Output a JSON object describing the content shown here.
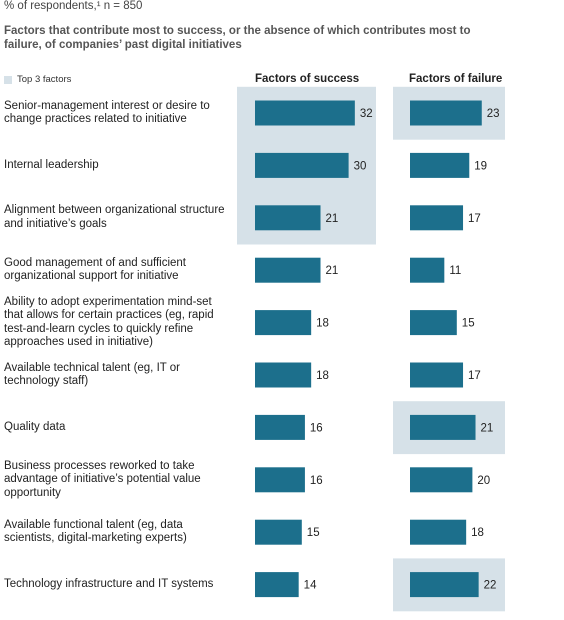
{
  "chart_data": {
    "type": "bar",
    "title": "% of respondents,¹ n = 850",
    "subtitle": "Factors that contribute most to success, or the absence of which contributes most to failure, of companies’ past digital initiatives",
    "legend_label": "Top 3 factors",
    "highlight_color": "#d6e1e8",
    "categories": [
      "Senior-management interest or desire to change practices related to initiative",
      "Internal leadership",
      "Alignment between organizational structure and initiative’s goals",
      "Good management of and sufficient organizational support for initiative",
      "Ability to adopt experimentation mind-set that allows for certain practices (eg, rapid test-and-learn cycles to quickly refine approaches used in initiative)",
      "Available technical talent (eg, IT or technology staff)",
      "Quality data",
      "Business processes reworked to take advantage of initiative’s potential value opportunity",
      "Available functional talent (eg, data scientists, digital-marketing experts)",
      "Technology infrastructure and IT systems"
    ],
    "series": [
      {
        "name": "Factors of success",
        "color": "#1c6f8c",
        "values": [
          32,
          30,
          21,
          21,
          18,
          18,
          16,
          16,
          15,
          14
        ],
        "highlighted": [
          true,
          true,
          true,
          false,
          false,
          false,
          false,
          false,
          false,
          false
        ]
      },
      {
        "name": "Factors of failure",
        "color": "#1c6f8c",
        "values": [
          23,
          19,
          17,
          11,
          15,
          17,
          21,
          20,
          18,
          22
        ],
        "highlighted": [
          true,
          false,
          false,
          false,
          false,
          false,
          true,
          false,
          false,
          true
        ]
      }
    ]
  }
}
